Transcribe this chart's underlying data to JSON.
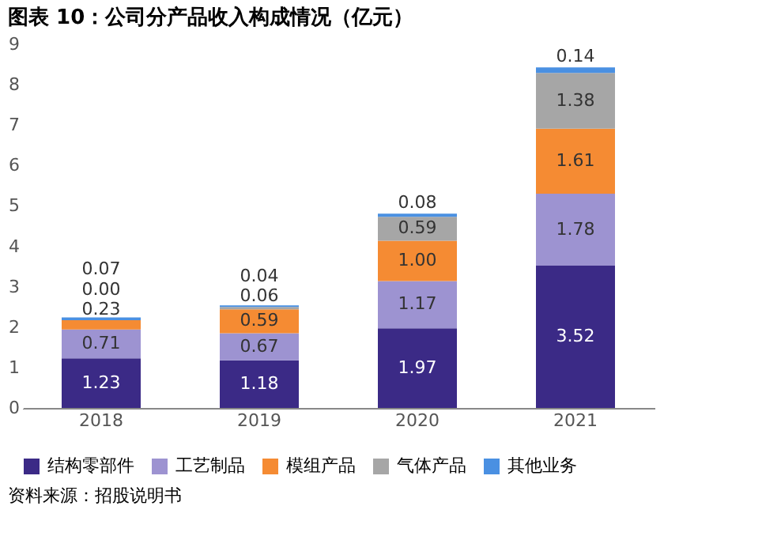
{
  "chart_data": {
    "type": "bar",
    "stacked": true,
    "title": "图表 10：公司分产品收入构成情况（亿元）",
    "categories": [
      "2018",
      "2019",
      "2020",
      "2021"
    ],
    "series": [
      {
        "name": "结构零部件",
        "color": "#3b2a86",
        "values": [
          1.23,
          1.18,
          1.97,
          3.52
        ],
        "value_labels": [
          "1.23",
          "1.18",
          "1.97",
          "3.52"
        ]
      },
      {
        "name": "工艺制品",
        "color": "#9d93d1",
        "values": [
          0.71,
          0.67,
          1.17,
          1.78
        ],
        "value_labels": [
          "0.71",
          "0.67",
          "1.17",
          "1.78"
        ]
      },
      {
        "name": "模组产品",
        "color": "#f58b33",
        "values": [
          0.23,
          0.59,
          1.0,
          1.61
        ],
        "value_labels": [
          "0.23",
          "0.59",
          "1.00",
          "1.61"
        ]
      },
      {
        "name": "气体产品",
        "color": "#a6a6a6",
        "values": [
          0.0,
          0.06,
          0.59,
          1.38
        ],
        "value_labels": [
          "0.00",
          "0.06",
          "0.59",
          "1.38"
        ]
      },
      {
        "name": "其他业务",
        "color": "#4a90e2",
        "values": [
          0.07,
          0.04,
          0.08,
          0.14
        ],
        "value_labels": [
          "0.07",
          "0.04",
          "0.08",
          "0.14"
        ]
      }
    ],
    "ylim": [
      0,
      9
    ],
    "yticks": [
      0,
      1,
      2,
      3,
      4,
      5,
      6,
      7,
      8,
      9
    ],
    "grid": false,
    "legend": "bottom",
    "annotations": [
      "资料来源：招股说明书"
    ]
  }
}
